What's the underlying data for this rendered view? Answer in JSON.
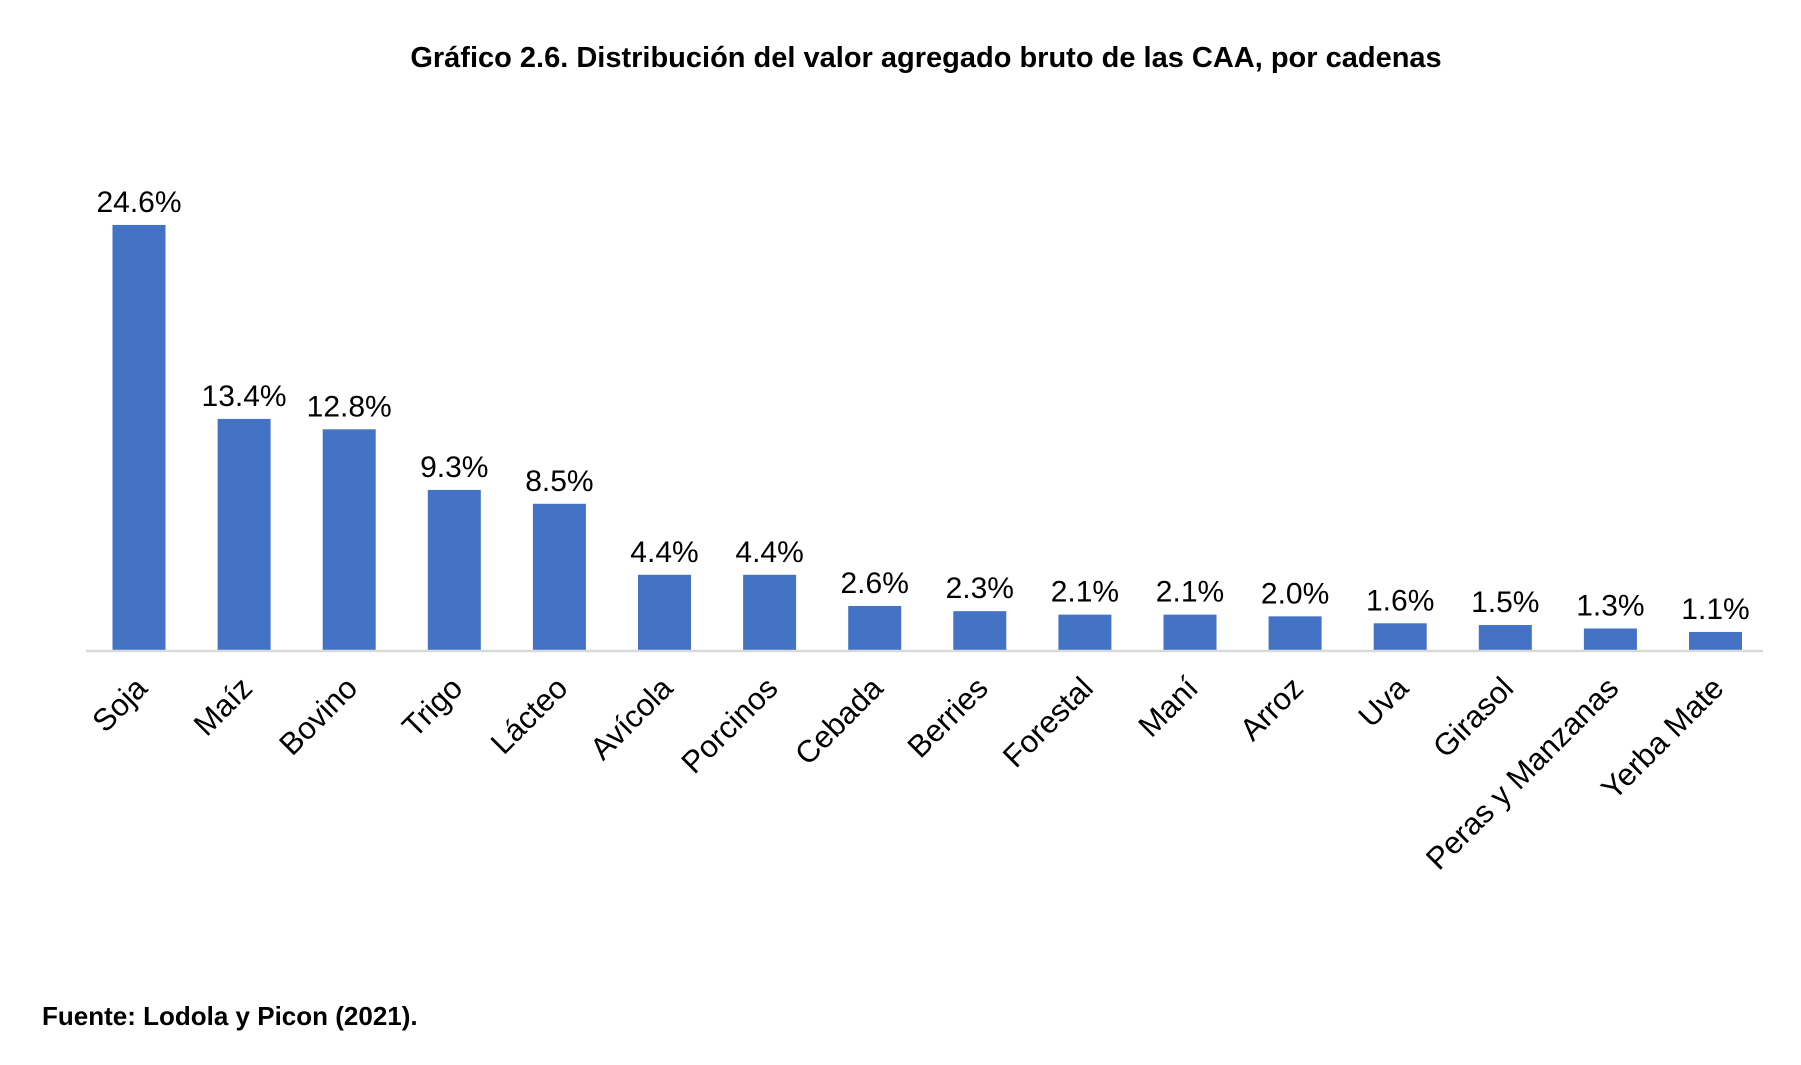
{
  "chart_data": {
    "type": "bar",
    "title": "Gráfico 2.6. Distribución del valor agregado bruto de las CAA, por cadenas",
    "source": "Fuente: Lodola y Picon (2021).",
    "categories": [
      "Soja",
      "Maíz",
      "Bovino",
      "Trigo",
      "Lácteo",
      "Avícola",
      "Porcinos",
      "Cebada",
      "Berries",
      "Forestal",
      "Maní",
      "Arroz",
      "Uva",
      "Girasol",
      "Peras y Manzanas",
      "Yerba Mate"
    ],
    "values": [
      24.6,
      13.4,
      12.8,
      9.3,
      8.5,
      4.4,
      4.4,
      2.6,
      2.3,
      2.1,
      2.1,
      2.0,
      1.6,
      1.5,
      1.3,
      1.1
    ],
    "data_labels": [
      "24.6%",
      "13.4%",
      "12.8%",
      "9.3%",
      "8.5%",
      "4.4%",
      "4.4%",
      "2.6%",
      "2.3%",
      "2.1%",
      "2.1%",
      "2.0%",
      "1.6%",
      "1.5%",
      "1.3%",
      "1.1%"
    ],
    "xlabel": "",
    "ylabel": "",
    "ylim": [
      0,
      25
    ],
    "grid": false,
    "y_axis_visible": false,
    "legend": "none",
    "bar_color": "#4472C4",
    "axis_color": "#D9D9D9"
  }
}
